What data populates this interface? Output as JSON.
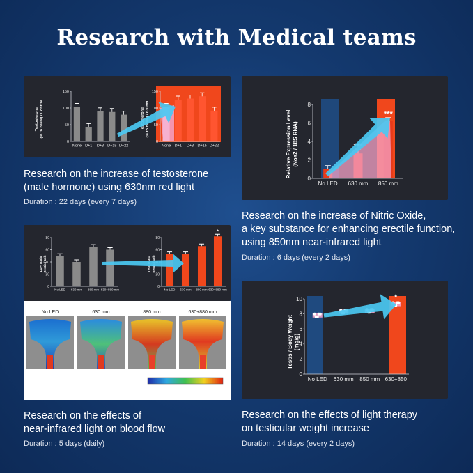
{
  "title": "Research with Medical teams",
  "colors": {
    "bar_gray": "#8a8a8a",
    "bar_orange": "#f0471c",
    "arrow": "#4bc8f2",
    "pink": "#f5a3c8",
    "blue_col": "#1f4f88"
  },
  "panels": {
    "p1": {
      "caption_lines": [
        "Research on the increase of testosterone",
        "(male hormone) using 630nm red light"
      ],
      "duration": "Duration : 22 days (every 7 days)"
    },
    "p2": {
      "caption_lines": [
        "Research on the increase of Nitric Oxide,",
        "a key substance for enhancing erectile function,",
        "using 850nm near-infrared light"
      ],
      "duration": "Duration : 6 days (every 2 days)"
    },
    "p3": {
      "caption_lines": [
        "Research on the effects of",
        "near-infrared light on blood flow"
      ],
      "duration": "Duration : 5 days (daily)",
      "heatmap_labels": [
        "No LED",
        "630 mm",
        "880 mm",
        "630+880 mm"
      ]
    },
    "p4": {
      "caption_lines": [
        "Research on the effects of light therapy",
        "on testicular weight increase"
      ],
      "duration": "Duration : 14 days (every 2 days)"
    }
  },
  "chart_data": [
    {
      "id": "testosterone-control",
      "type": "bar",
      "ylabel": "Testosterone (% to basal) / Control",
      "categories": [
        "None",
        "D+1",
        "D+8",
        "D+15",
        "D+22"
      ],
      "values": [
        103,
        43,
        90,
        88,
        80
      ],
      "ylim": [
        0,
        150
      ],
      "yticks": [
        0,
        50,
        100,
        150
      ]
    },
    {
      "id": "testosterone-630nm",
      "type": "bar",
      "ylabel": "Testosterone (% to basal) / 630nm",
      "categories": [
        "None",
        "D+1",
        "D+8",
        "D+15",
        "D+22"
      ],
      "values": [
        103,
        125,
        128,
        135,
        92
      ],
      "ylim": [
        0,
        150
      ],
      "yticks": [
        0,
        50,
        100,
        150
      ]
    },
    {
      "id": "nitric-oxide",
      "type": "bar",
      "ylabel": "Relative Expression Level (Nos2 / 18S RNA)",
      "categories": [
        "No LED",
        "630 mm",
        "850 mm"
      ],
      "values": [
        1.0,
        2.7,
        6.2
      ],
      "annotations": [
        "",
        "***",
        "***"
      ],
      "ylim": [
        0,
        8
      ],
      "yticks": [
        0,
        2,
        4,
        6,
        8
      ]
    },
    {
      "id": "ldpi-control",
      "type": "bar",
      "ylabel": "LDPI Ratio (testis / tail)",
      "categories": [
        "No LED",
        "630 mm",
        "880 mm",
        "630+880 mm"
      ],
      "values": [
        50,
        40,
        65,
        60
      ],
      "ylim": [
        0,
        80
      ],
      "yticks": [
        0,
        20,
        40,
        60,
        80
      ]
    },
    {
      "id": "ldpi-treated",
      "type": "bar",
      "ylabel": "LDPI Ratio (testis / tail)",
      "categories": [
        "No LED",
        "630 mm",
        "880 mm",
        "630+880 mm"
      ],
      "values": [
        53,
        53,
        66,
        82
      ],
      "annotations": [
        "",
        "",
        "",
        "*"
      ],
      "ylim": [
        0,
        80
      ],
      "yticks": [
        0,
        20,
        40,
        60,
        80
      ]
    },
    {
      "id": "testis-weight",
      "type": "scatter",
      "ylabel": "Testis / Body Weight (mg/g)",
      "categories": [
        "No LED",
        "630 mm",
        "850 mm",
        "630+850"
      ],
      "values": [
        7.8,
        8.3,
        8.4,
        9.3
      ],
      "annotations": [
        "",
        "",
        "",
        "*"
      ],
      "ylim": [
        0,
        10
      ],
      "yticks": [
        0,
        2,
        4,
        6,
        8,
        10
      ]
    }
  ]
}
